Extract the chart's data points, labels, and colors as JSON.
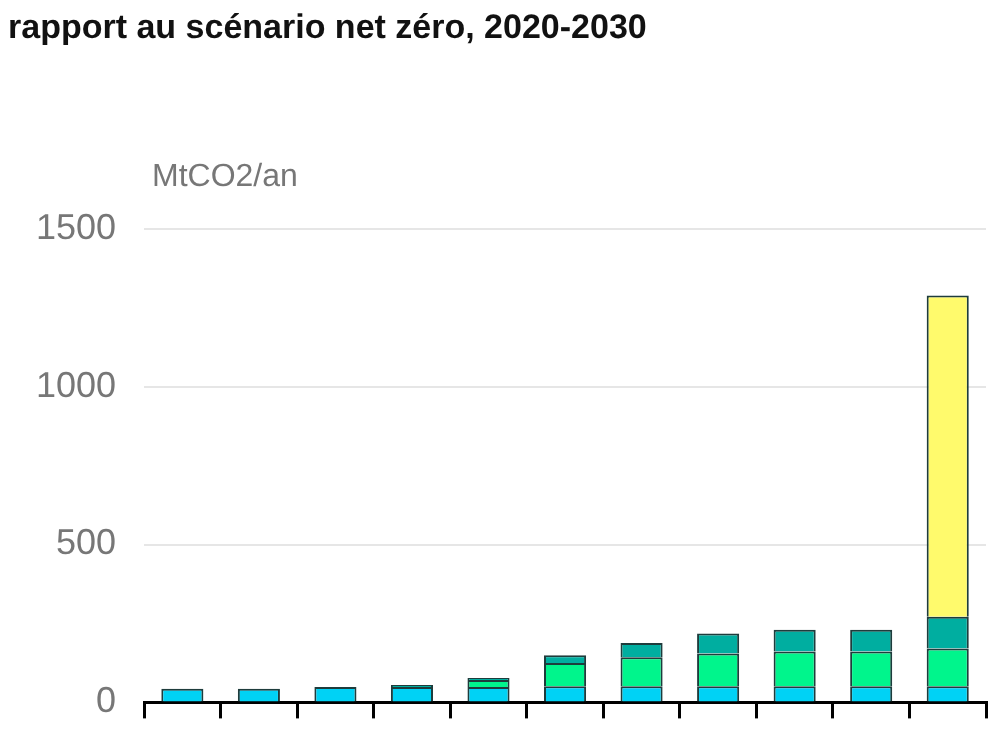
{
  "chart_data": {
    "type": "bar",
    "title": "rapport au scénario net zéro, 2020-2030",
    "ylabel": "MtCO2/an",
    "stacked": true,
    "categories": [
      null,
      null,
      null,
      null,
      null,
      null,
      null,
      null,
      null,
      null,
      null
    ],
    "series": [
      {
        "color": "#00d2f5",
        "values": [
          43,
          43,
          49,
          49,
          49,
          51,
          51,
          51,
          51,
          51,
          51
        ]
      },
      {
        "color": "#00f58c",
        "values": [
          null,
          null,
          null,
          null,
          22,
          74,
          92,
          104,
          110,
          110,
          120
        ]
      },
      {
        "color": "#00aea0",
        "values": [
          null,
          null,
          null,
          6,
          6,
          24,
          45,
          63,
          69,
          69,
          100
        ]
      },
      {
        "color": "#fffa6c",
        "values": [
          null,
          null,
          null,
          null,
          null,
          null,
          null,
          null,
          null,
          null,
          1018
        ]
      }
    ],
    "ylim": [
      0,
      1500
    ],
    "yticks": [
      0,
      500,
      1000,
      1500
    ],
    "grid": "y",
    "legend": false
  }
}
